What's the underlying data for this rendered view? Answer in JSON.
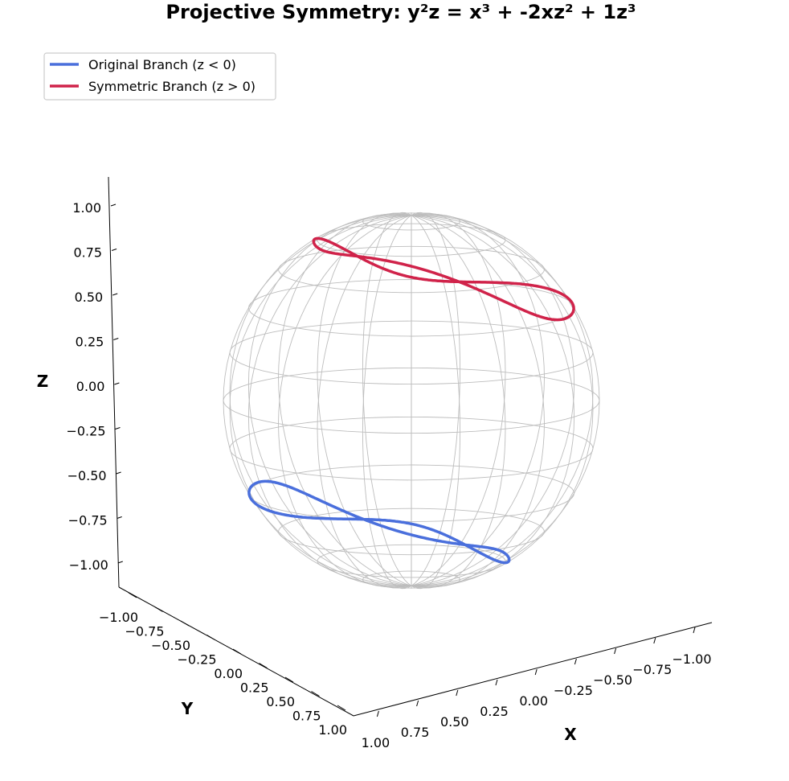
{
  "chart_data": {
    "type": "line",
    "title": "Projective Symmetry: y²z = x³ + -2xz² + 1z³",
    "xlabel": "X",
    "ylabel": "Y",
    "zlabel": "Z",
    "xlim": [
      -1.1,
      1.1
    ],
    "ylim": [
      -1.1,
      1.1
    ],
    "zlim": [
      -1.1,
      1.1
    ],
    "x_ticks": [
      "−1.00",
      "−0.75",
      "−0.50",
      "−0.25",
      "0.00",
      "0.25",
      "0.50",
      "0.75",
      "1.00"
    ],
    "y_ticks": [
      "−1.00",
      "−0.75",
      "−0.50",
      "−0.25",
      "0.00",
      "0.25",
      "0.50",
      "0.75",
      "1.00"
    ],
    "z_ticks": [
      "1.00",
      "0.75",
      "0.50",
      "0.25",
      "0.00",
      "−0.25",
      "−0.50",
      "−0.75",
      "−1.00"
    ],
    "grid": false,
    "legend_position": "top-left",
    "reference_surface": "unit sphere wireframe",
    "series": [
      {
        "name": "Original Branch (z < 0)",
        "color": "#4a6fdc",
        "curve": "points on unit sphere satisfying y²z = x³ − 2xz² + z³ with z < 0"
      },
      {
        "name": "Symmetric Branch (z > 0)",
        "color": "#d0234a",
        "curve": "antipodal image of original branch, z > 0"
      }
    ]
  }
}
